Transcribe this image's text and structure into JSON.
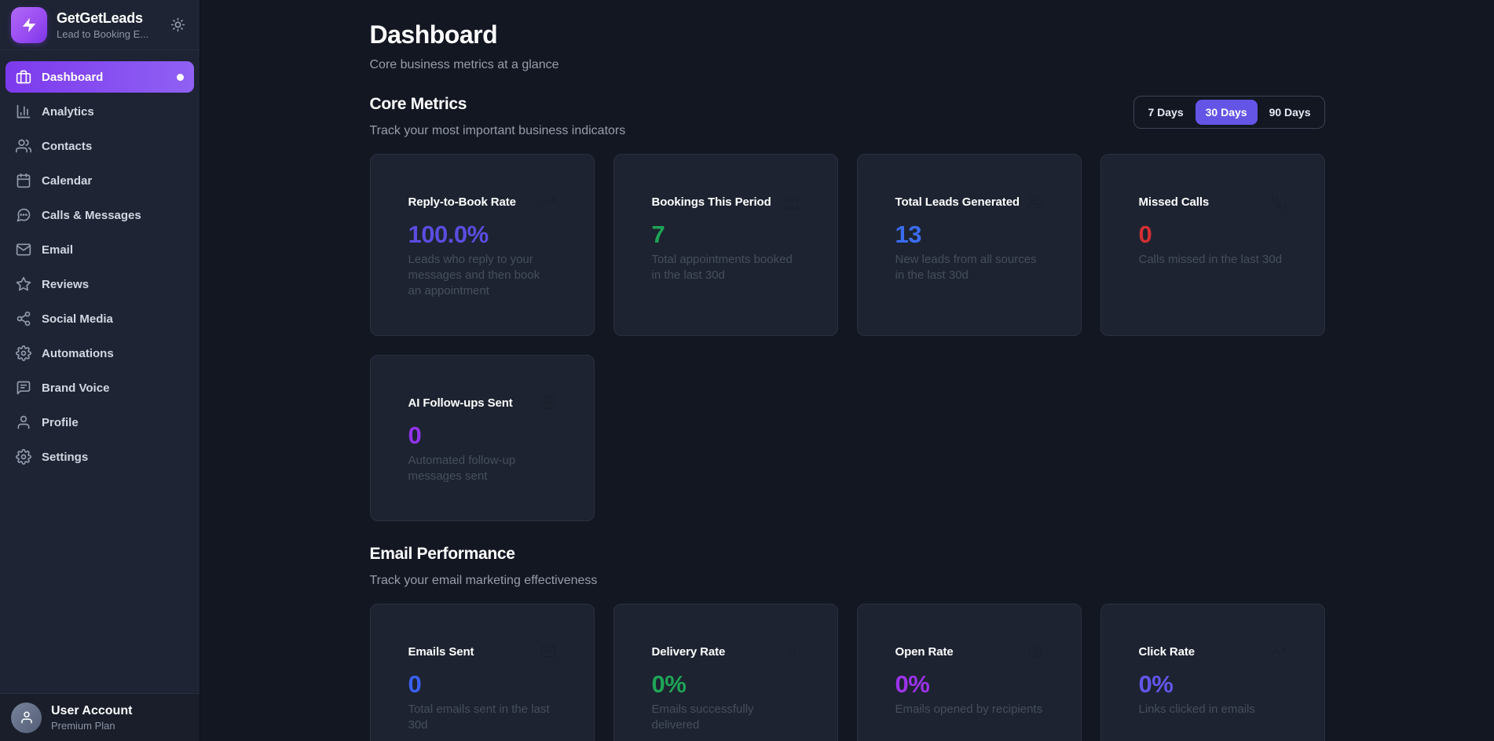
{
  "brand": {
    "name": "GetGetLeads",
    "tagline": "Lead to Booking E...",
    "logo_icon": "lightning",
    "theme_icon": "sun"
  },
  "sidebar": {
    "items": [
      {
        "label": "Dashboard",
        "icon": "briefcase",
        "active": true
      },
      {
        "label": "Analytics",
        "icon": "bar-chart-3",
        "active": false
      },
      {
        "label": "Contacts",
        "icon": "users",
        "active": false
      },
      {
        "label": "Calendar",
        "icon": "calendar",
        "active": false
      },
      {
        "label": "Calls & Messages",
        "icon": "message-circle",
        "active": false
      },
      {
        "label": "Email",
        "icon": "mail",
        "active": false
      },
      {
        "label": "Reviews",
        "icon": "star",
        "active": false
      },
      {
        "label": "Social Media",
        "icon": "share",
        "active": false
      },
      {
        "label": "Automations",
        "icon": "gear",
        "active": false
      },
      {
        "label": "Brand Voice",
        "icon": "message-square",
        "active": false
      },
      {
        "label": "Profile",
        "icon": "user",
        "active": false
      },
      {
        "label": "Settings",
        "icon": "gear",
        "active": false
      }
    ],
    "user": {
      "name": "User Account",
      "plan": "Premium Plan",
      "avatar_icon": "user"
    }
  },
  "page": {
    "title": "Dashboard",
    "subtitle": "Core business metrics at a glance"
  },
  "core_metrics": {
    "heading": "Core Metrics",
    "subheading": "Track your most important business indicators",
    "range_options": [
      {
        "label": "7 Days",
        "active": false
      },
      {
        "label": "30 Days",
        "active": true
      },
      {
        "label": "90 Days",
        "active": false
      }
    ],
    "cards": [
      {
        "title": "Reply-to-Book Rate",
        "icon": "trending-up",
        "value": "100.0%",
        "value_color": "#5a4de0",
        "description": "Leads who reply to your messages and then book an appointment"
      },
      {
        "title": "Bookings This Period",
        "icon": "calendar",
        "value": "7",
        "value_color": "#1fa457",
        "description": "Total appointments booked in the last 30d"
      },
      {
        "title": "Total Leads Generated",
        "icon": "users",
        "value": "13",
        "value_color": "#3b6cf0",
        "description": "New leads from all sources in the last 30d"
      },
      {
        "title": "Missed Calls",
        "icon": "phone",
        "value": "0",
        "value_color": "#d32f33",
        "description": "Calls missed in the last 30d"
      },
      {
        "title": "AI Follow-ups Sent",
        "icon": "globe",
        "value": "0",
        "value_color": "#9333ea",
        "description": "Automated follow-up messages sent"
      }
    ]
  },
  "email_performance": {
    "heading": "Email Performance",
    "subheading": "Track your email marketing effectiveness",
    "cards": [
      {
        "title": "Emails Sent",
        "icon": "mail",
        "value": "0",
        "value_color": "#3960f0",
        "description": "Total emails sent in the last 30d"
      },
      {
        "title": "Delivery Rate",
        "icon": "bar-chart",
        "value": "0%",
        "value_color": "#1fa457",
        "description": "Emails successfully delivered"
      },
      {
        "title": "Open Rate",
        "icon": "circle-dot",
        "value": "0%",
        "value_color": "#9d33ea",
        "description": "Emails opened by recipients"
      },
      {
        "title": "Click Rate",
        "icon": "trending-up",
        "value": "0%",
        "value_color": "#6156ea",
        "description": "Links clicked in emails"
      }
    ]
  },
  "colors": {
    "accent": "#6455e6",
    "sidebar_active_from": "#7c3aed",
    "sidebar_active_to": "#9061f4",
    "page_bg": "#131722",
    "sidebar_bg": "#1e2433",
    "card_bg": "#1d2330"
  }
}
